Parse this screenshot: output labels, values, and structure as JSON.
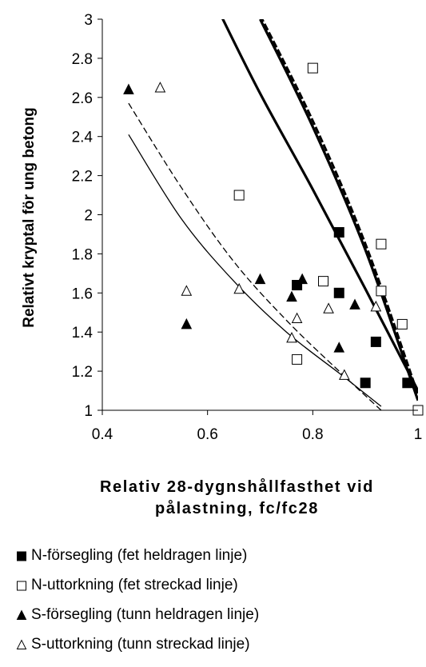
{
  "chart_data": {
    "type": "scatter",
    "ylabel": "Relativt kryptal för ung betong",
    "xlabel_lines": [
      "Relativ 28-dygnshållfasthet vid",
      "pålastning, fc/fc28"
    ],
    "xlim": [
      0.4,
      1.0
    ],
    "ylim": [
      1.0,
      3.0
    ],
    "x_ticks": [
      "0.4",
      "0.6",
      "0.8",
      "1"
    ],
    "y_ticks": [
      "1",
      "1.2",
      "1.4",
      "1.6",
      "1.8",
      "2",
      "2.2",
      "2.4",
      "2.6",
      "2.8",
      "3"
    ],
    "grid": false,
    "legend_position": "bottom",
    "series": [
      {
        "name": "N-försegling (fet heldragen linje)",
        "marker": "square-filled",
        "points": [
          [
            0.77,
            1.64
          ],
          [
            0.85,
            1.91
          ],
          [
            0.85,
            1.6
          ],
          [
            0.92,
            1.35
          ],
          [
            0.9,
            1.14
          ],
          [
            0.98,
            1.14
          ],
          [
            1.0,
            1.0
          ]
        ]
      },
      {
        "name": "N-uttorkning (fet streckad linje)",
        "marker": "square-open",
        "points": [
          [
            0.8,
            2.75
          ],
          [
            0.66,
            2.1
          ],
          [
            0.93,
            1.85
          ],
          [
            0.93,
            1.61
          ],
          [
            0.97,
            1.44
          ],
          [
            0.82,
            1.66
          ],
          [
            0.77,
            1.26
          ],
          [
            1.0,
            1.0
          ]
        ]
      },
      {
        "name": "S-försegling (tunn heldragen linje)",
        "marker": "triangle-filled",
        "points": [
          [
            0.45,
            2.64
          ],
          [
            0.56,
            1.44
          ],
          [
            0.7,
            1.67
          ],
          [
            0.76,
            1.58
          ],
          [
            0.78,
            1.67
          ],
          [
            0.85,
            1.32
          ],
          [
            0.88,
            1.54
          ]
        ]
      },
      {
        "name": "S-uttorkning (tunn streckad linje)",
        "marker": "triangle-open",
        "points": [
          [
            0.51,
            2.65
          ],
          [
            0.56,
            1.61
          ],
          [
            0.66,
            1.62
          ],
          [
            0.76,
            1.37
          ],
          [
            0.77,
            1.47
          ],
          [
            0.83,
            1.52
          ],
          [
            0.86,
            1.18
          ],
          [
            0.92,
            1.53
          ]
        ]
      }
    ],
    "curves": [
      {
        "series": "N-försegling (fet heldragen linje)",
        "style": "thick-solid",
        "points": [
          [
            0.62,
            3.05
          ],
          [
            0.7,
            2.62
          ],
          [
            0.8,
            2.13
          ],
          [
            0.9,
            1.62
          ],
          [
            1.0,
            1.1
          ]
        ]
      },
      {
        "series": "N-uttorkning (fet streckad linje)",
        "style": "thick-dashed",
        "points": [
          [
            0.7,
            3.02
          ],
          [
            0.8,
            2.48
          ],
          [
            0.9,
            1.85
          ],
          [
            1.0,
            1.08
          ]
        ]
      },
      {
        "series": "N-försegling (fet heldragen linje)",
        "style": "thick-solid",
        "points": [
          [
            0.7,
            3.0
          ],
          [
            0.8,
            2.45
          ],
          [
            0.9,
            1.82
          ],
          [
            1.0,
            1.05
          ]
        ]
      },
      {
        "series": "S-försegling (tunn heldragen linje)",
        "style": "thin-solid",
        "points": [
          [
            0.45,
            2.41
          ],
          [
            0.55,
            1.98
          ],
          [
            0.65,
            1.66
          ],
          [
            0.75,
            1.4
          ],
          [
            0.85,
            1.19
          ],
          [
            0.93,
            1.02
          ]
        ]
      },
      {
        "series": "S-uttorkning (tunn streckad linje)",
        "style": "thin-dashed",
        "points": [
          [
            0.45,
            2.57
          ],
          [
            0.55,
            2.14
          ],
          [
            0.65,
            1.76
          ],
          [
            0.75,
            1.46
          ],
          [
            0.85,
            1.2
          ],
          [
            0.93,
            1.0
          ]
        ]
      }
    ]
  }
}
